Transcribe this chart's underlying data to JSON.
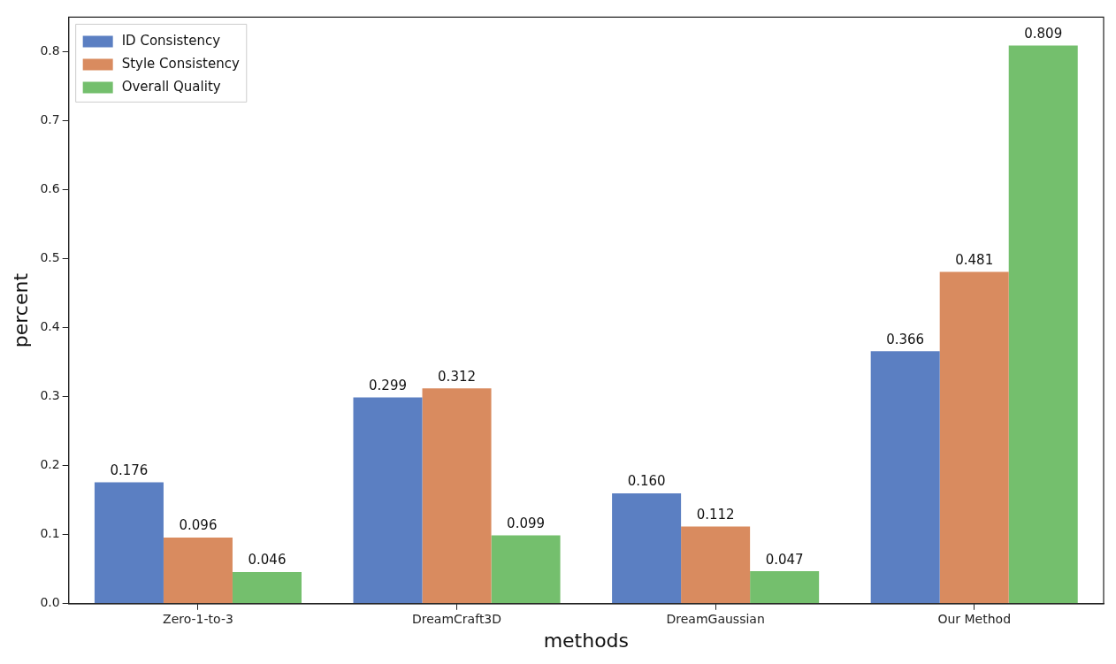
{
  "chart_data": {
    "type": "bar",
    "xlabel": "methods",
    "ylabel": "percent",
    "categories": [
      "Zero-1-to-3",
      "DreamCraft3D",
      "DreamGaussian",
      "Our Method"
    ],
    "series": [
      {
        "name": "ID Consistency",
        "color": "#5b7fc2",
        "values": [
          0.176,
          0.299,
          0.16,
          0.366
        ],
        "value_labels": [
          "0.176",
          "0.299",
          "0.160",
          "0.366"
        ]
      },
      {
        "name": "Style Consistency",
        "color": "#d98b5f",
        "values": [
          0.096,
          0.312,
          0.112,
          0.481
        ],
        "value_labels": [
          "0.096",
          "0.312",
          "0.112",
          "0.481"
        ]
      },
      {
        "name": "Overall Quality",
        "color": "#74bf6d",
        "values": [
          0.046,
          0.099,
          0.047,
          0.809
        ],
        "value_labels": [
          "0.046",
          "0.099",
          "0.047",
          "0.809"
        ]
      }
    ],
    "ylim": [
      0,
      0.85
    ],
    "yticks": [
      {
        "value": 0,
        "label": "0.0"
      },
      {
        "value": 0.1,
        "label": "0.1"
      },
      {
        "value": 0.2,
        "label": "0.2"
      },
      {
        "value": 0.3,
        "label": "0.3"
      },
      {
        "value": 0.4,
        "label": "0.4"
      },
      {
        "value": 0.5,
        "label": "0.5"
      },
      {
        "value": 0.6,
        "label": "0.6"
      },
      {
        "value": 0.7,
        "label": "0.7"
      },
      {
        "value": 0.8,
        "label": "0.8"
      }
    ],
    "grid": false,
    "legend": "top left"
  }
}
